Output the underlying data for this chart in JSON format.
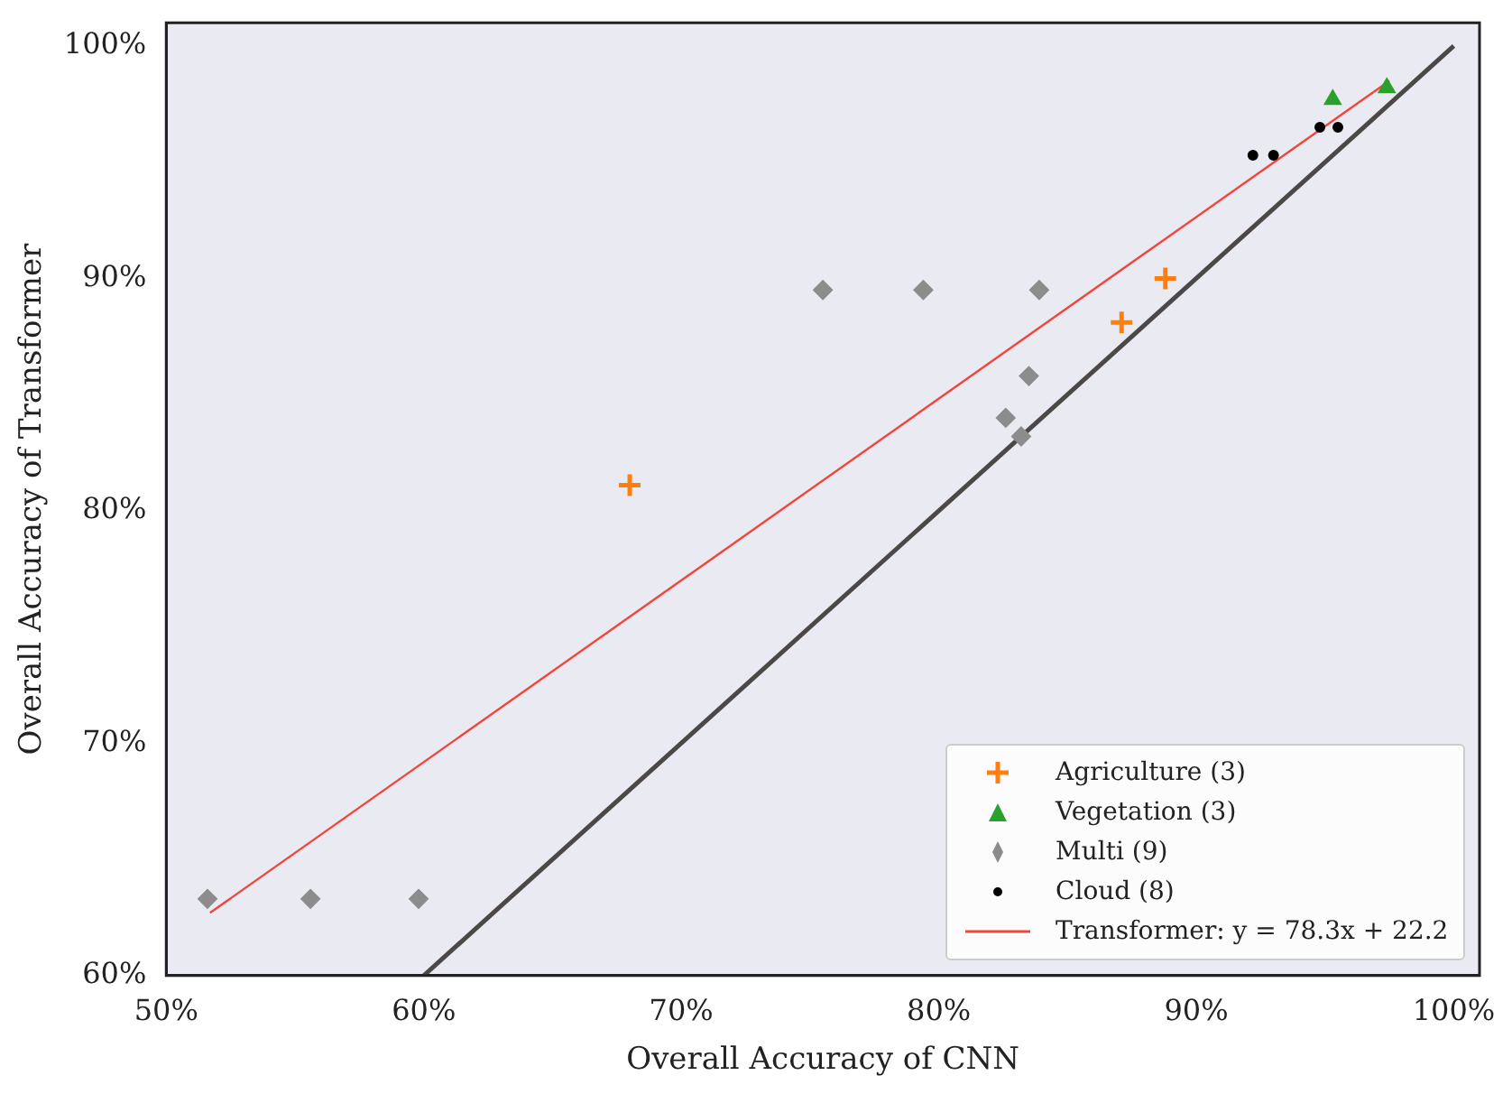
{
  "chart_data": {
    "type": "scatter",
    "xlabel": "Overall Accuracy of CNN",
    "ylabel": "Overall Accuracy of Transformer",
    "xlim": [
      50,
      101
    ],
    "ylim": [
      60,
      101
    ],
    "xticks": [
      {
        "value": 50,
        "label": "50%"
      },
      {
        "value": 60,
        "label": "60%"
      },
      {
        "value": 70,
        "label": "70%"
      },
      {
        "value": 80,
        "label": "80%"
      },
      {
        "value": 90,
        "label": "90%"
      },
      {
        "value": 100,
        "label": "100%"
      }
    ],
    "yticks": [
      {
        "value": 60,
        "label": "60%"
      },
      {
        "value": 70,
        "label": "70%"
      },
      {
        "value": 80,
        "label": "80%"
      },
      {
        "value": 90,
        "label": "90%"
      },
      {
        "value": 100,
        "label": "100%"
      }
    ],
    "grid": false,
    "legend": "bottom right",
    "series": [
      {
        "name": "Agriculture (3)",
        "color": "#ff7f0e",
        "marker": "cross",
        "x": [
          68.0,
          87.1,
          88.8
        ],
        "values": [
          81.1,
          88.1,
          90.0
        ]
      },
      {
        "name": "Vegetation (3)",
        "color": "#2ca02c",
        "marker": "triangle",
        "x": [
          95.3,
          97.4
        ],
        "values": [
          97.7,
          98.2
        ]
      },
      {
        "name": "Multi (9)",
        "color": "#8c8c8c",
        "marker": "diamond",
        "x": [
          75.5,
          79.4,
          83.9,
          83.5,
          82.6,
          83.2,
          51.6,
          55.6,
          59.8
        ],
        "values": [
          89.5,
          89.5,
          89.5,
          85.8,
          84.0,
          83.2,
          63.3,
          63.3,
          63.3
        ]
      },
      {
        "name": "Cloud (8)",
        "color": "#000000",
        "marker": "circle",
        "x": [
          92.2,
          93.0,
          94.8,
          95.5
        ],
        "values": [
          95.3,
          95.3,
          96.5,
          96.5
        ]
      },
      {
        "name": "Transformer: y = 78.3x + 22.2",
        "type": "line",
        "color": "#f0463c",
        "marker": "none",
        "x": [
          51.7,
          97.5
        ],
        "values": [
          62.7,
          98.5
        ]
      },
      {
        "type": "line",
        "color": "#4d4848",
        "marker": "none",
        "x": [
          60,
          100
        ],
        "values": [
          60,
          100
        ]
      }
    ]
  }
}
